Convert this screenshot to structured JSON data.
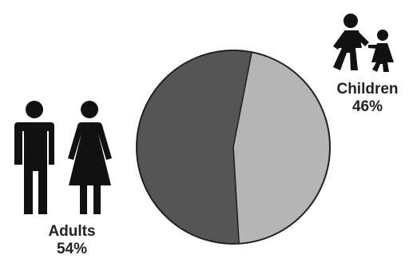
{
  "chart_data": {
    "type": "pie",
    "slices": [
      {
        "label": "Children",
        "value": 46,
        "display": "46%",
        "color": "#b5b5b5",
        "icon": "children-icon"
      },
      {
        "label": "Adults",
        "value": 54,
        "display": "54%",
        "color": "#555555",
        "icon": "adults-icon"
      }
    ],
    "start_angle_deg": 11,
    "slice_stroke": "#222222",
    "background": "#ffffff"
  }
}
